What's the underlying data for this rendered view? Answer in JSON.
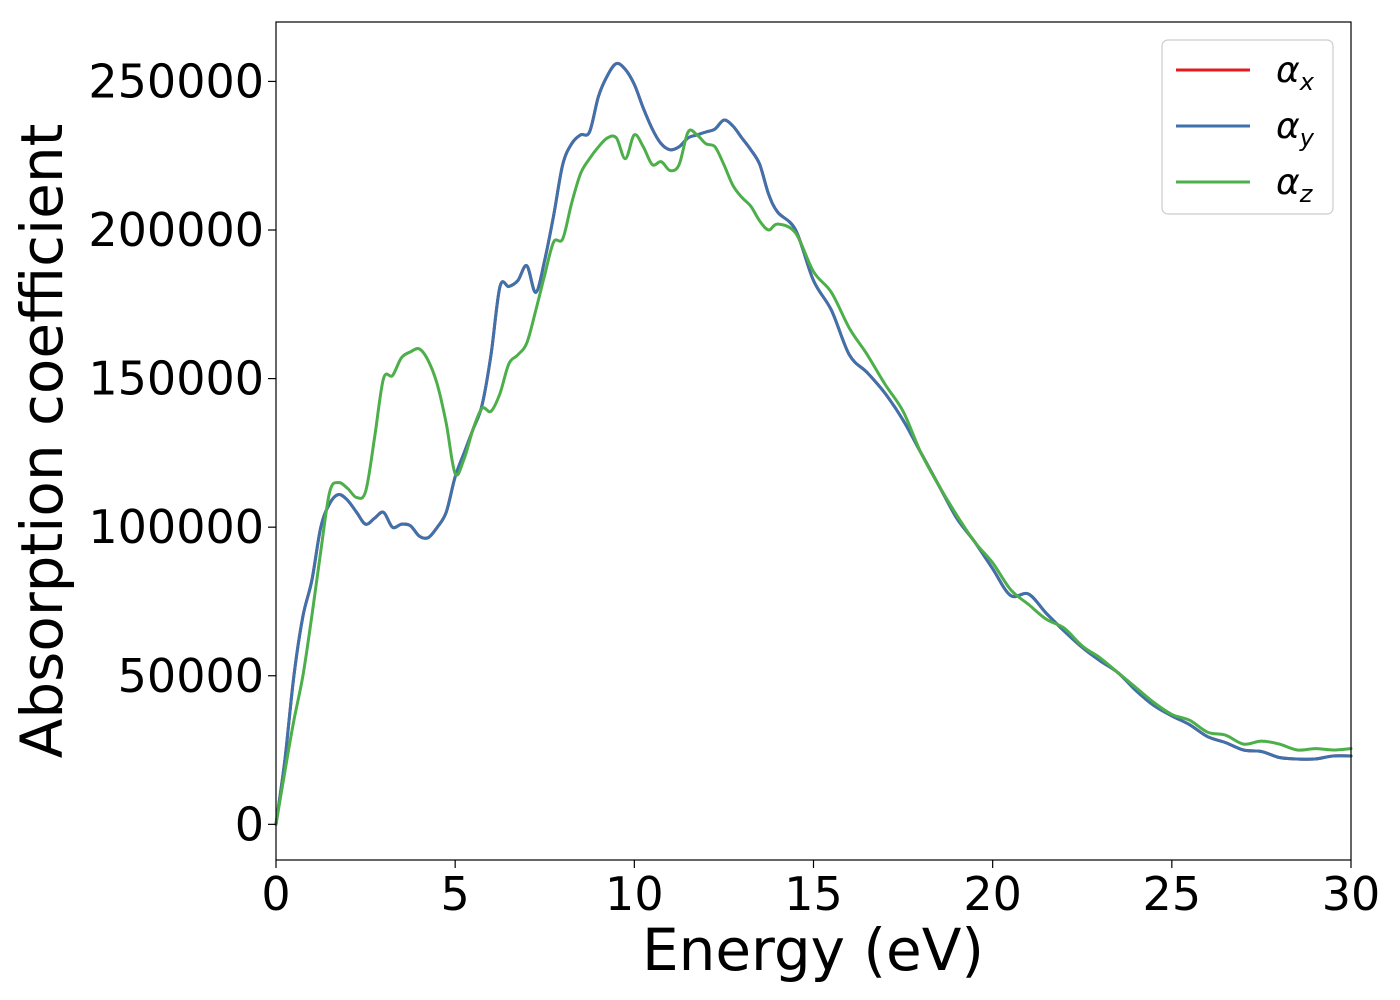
{
  "chart_data": {
    "type": "line",
    "title": "",
    "xlabel": "Energy (eV)",
    "ylabel": "Absorption coefficient",
    "xlim": [
      0,
      30
    ],
    "ylim": [
      -12000,
      270000
    ],
    "xticks": [
      0,
      5,
      10,
      15,
      20,
      25,
      30
    ],
    "yticks": [
      0,
      50000,
      100000,
      150000,
      200000,
      250000
    ],
    "grid": false,
    "legend_position": "top-right",
    "series": [
      {
        "name": "α_x",
        "legend_symbol": "α",
        "legend_sub": "x",
        "color": "#e41a1c",
        "x": [
          0,
          0.25,
          0.5,
          0.75,
          1,
          1.25,
          1.5,
          1.75,
          2,
          2.25,
          2.5,
          2.75,
          3,
          3.25,
          3.5,
          3.75,
          4,
          4.25,
          4.5,
          4.75,
          5,
          5.25,
          5.5,
          5.75,
          6,
          6.25,
          6.5,
          6.75,
          7,
          7.25,
          7.5,
          7.75,
          8,
          8.25,
          8.5,
          8.75,
          9,
          9.25,
          9.5,
          9.75,
          10,
          10.25,
          10.5,
          10.75,
          11,
          11.25,
          11.5,
          11.75,
          12,
          12.25,
          12.5,
          12.75,
          13,
          13.25,
          13.5,
          13.75,
          14,
          14.5,
          15,
          15.5,
          16,
          16.5,
          17,
          17.5,
          18,
          18.5,
          19,
          19.5,
          20,
          20.5,
          21,
          21.5,
          22,
          22.5,
          23,
          23.5,
          24,
          24.5,
          25,
          25.5,
          26,
          26.5,
          27,
          27.5,
          28,
          28.5,
          29,
          29.5,
          30
        ],
        "values": [
          0,
          22000,
          50000,
          70000,
          82000,
          100000,
          108000,
          111000,
          109000,
          105000,
          101000,
          103000,
          105000,
          100000,
          101000,
          100500,
          97000,
          96500,
          100000,
          105000,
          117000,
          125000,
          133000,
          141000,
          158000,
          181000,
          181000,
          183000,
          188000,
          179000,
          190000,
          205000,
          222000,
          229000,
          232000,
          233000,
          245000,
          252000,
          256000,
          254000,
          249000,
          241000,
          234000,
          229000,
          227000,
          228000,
          231000,
          232000,
          233000,
          234000,
          237000,
          235000,
          231000,
          227000,
          222000,
          212000,
          206000,
          200000,
          183000,
          173000,
          158000,
          152000,
          145000,
          136000,
          125000,
          114000,
          103000,
          95000,
          86000,
          77000,
          77500,
          71000,
          65000,
          59500,
          55000,
          51000,
          45000,
          40000,
          36500,
          33500,
          29500,
          27500,
          25000,
          24500,
          22500,
          22000,
          22000,
          23000,
          23000
        ]
      },
      {
        "name": "α_y",
        "legend_symbol": "α",
        "legend_sub": "y",
        "color": "#3e72ac",
        "x": [
          0,
          0.25,
          0.5,
          0.75,
          1,
          1.25,
          1.5,
          1.75,
          2,
          2.25,
          2.5,
          2.75,
          3,
          3.25,
          3.5,
          3.75,
          4,
          4.25,
          4.5,
          4.75,
          5,
          5.25,
          5.5,
          5.75,
          6,
          6.25,
          6.5,
          6.75,
          7,
          7.25,
          7.5,
          7.75,
          8,
          8.25,
          8.5,
          8.75,
          9,
          9.25,
          9.5,
          9.75,
          10,
          10.25,
          10.5,
          10.75,
          11,
          11.25,
          11.5,
          11.75,
          12,
          12.25,
          12.5,
          12.75,
          13,
          13.25,
          13.5,
          13.75,
          14,
          14.5,
          15,
          15.5,
          16,
          16.5,
          17,
          17.5,
          18,
          18.5,
          19,
          19.5,
          20,
          20.5,
          21,
          21.5,
          22,
          22.5,
          23,
          23.5,
          24,
          24.5,
          25,
          25.5,
          26,
          26.5,
          27,
          27.5,
          28,
          28.5,
          29,
          29.5,
          30
        ],
        "values": [
          0,
          22000,
          50000,
          70000,
          82000,
          100000,
          108000,
          111000,
          109000,
          105000,
          101000,
          103000,
          105000,
          100000,
          101000,
          100500,
          97000,
          96500,
          100000,
          105000,
          117000,
          125000,
          133000,
          141000,
          158000,
          181000,
          181000,
          183000,
          188000,
          179000,
          190000,
          205000,
          222000,
          229000,
          232000,
          233000,
          245000,
          252000,
          256000,
          254000,
          249000,
          241000,
          234000,
          229000,
          227000,
          228000,
          231000,
          232000,
          233000,
          234000,
          237000,
          235000,
          231000,
          227000,
          222000,
          212000,
          206000,
          200000,
          183000,
          173000,
          158000,
          152000,
          145000,
          136000,
          125000,
          114000,
          103000,
          95000,
          86000,
          77000,
          77500,
          71000,
          65000,
          59500,
          55000,
          51000,
          45000,
          40000,
          36500,
          33500,
          29500,
          27500,
          25000,
          24500,
          22500,
          22000,
          22000,
          23000,
          23000
        ]
      },
      {
        "name": "α_z",
        "legend_symbol": "α",
        "legend_sub": "z",
        "color": "#4daf4a",
        "x": [
          0,
          0.25,
          0.5,
          0.75,
          1,
          1.25,
          1.5,
          1.75,
          2,
          2.25,
          2.5,
          2.75,
          3,
          3.25,
          3.5,
          3.75,
          4,
          4.25,
          4.5,
          4.75,
          5,
          5.25,
          5.5,
          5.75,
          6,
          6.25,
          6.5,
          6.75,
          7,
          7.25,
          7.5,
          7.75,
          8,
          8.25,
          8.5,
          8.75,
          9,
          9.25,
          9.5,
          9.75,
          10,
          10.25,
          10.5,
          10.75,
          11,
          11.25,
          11.5,
          11.75,
          12,
          12.25,
          12.5,
          12.75,
          13,
          13.25,
          13.5,
          13.75,
          14,
          14.5,
          15,
          15.5,
          16,
          16.5,
          17,
          17.5,
          18,
          18.5,
          19,
          19.5,
          20,
          20.5,
          21,
          21.5,
          22,
          22.5,
          23,
          23.5,
          24,
          24.5,
          25,
          25.5,
          26,
          26.5,
          27,
          27.5,
          28,
          28.5,
          29,
          29.5,
          30
        ],
        "values": [
          0,
          18000,
          35000,
          50000,
          70000,
          92000,
          112000,
          115000,
          113000,
          110000,
          112000,
          130000,
          150000,
          151000,
          157000,
          159000,
          160000,
          156000,
          148000,
          135000,
          118000,
          123000,
          133000,
          140000,
          139000,
          145000,
          155000,
          158000,
          162000,
          173000,
          185000,
          196000,
          197000,
          209000,
          219000,
          224000,
          228000,
          231000,
          231000,
          224000,
          232000,
          228000,
          222000,
          223000,
          220000,
          222000,
          233000,
          232000,
          229000,
          228000,
          222000,
          215000,
          211000,
          208000,
          203000,
          200000,
          202000,
          199000,
          186000,
          179000,
          167000,
          158000,
          148000,
          139000,
          125000,
          114000,
          104000,
          95000,
          88000,
          79000,
          74000,
          69000,
          66000,
          60000,
          56000,
          51000,
          46000,
          41000,
          37000,
          35000,
          31000,
          30000,
          27000,
          28000,
          27000,
          25000,
          25500,
          25000,
          25500
        ]
      }
    ]
  }
}
